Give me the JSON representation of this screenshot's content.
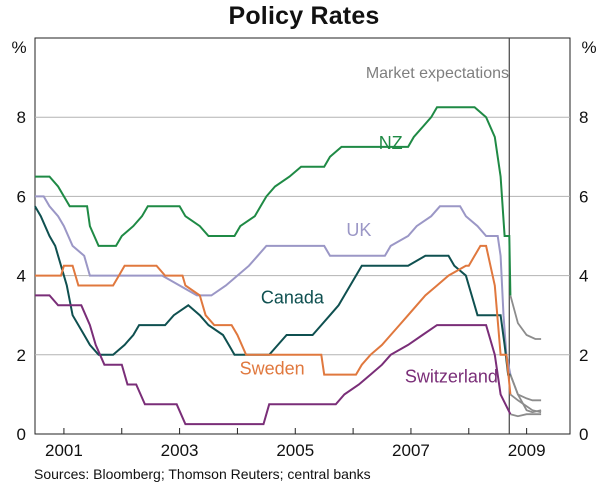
{
  "title": "Policy Rates",
  "source": "Sources: Bloomberg; Thomson Reuters; central banks",
  "chart_data": {
    "type": "line",
    "title": "Policy Rates",
    "ylabel": "%",
    "ylabel_right": "%",
    "xlim": [
      2000.5,
      2009.75
    ],
    "ylim": [
      0,
      10
    ],
    "y_ticks": [
      0,
      2,
      4,
      6,
      8
    ],
    "x_ticks": [
      {
        "label": "2001",
        "value": 2001.0
      },
      {
        "label": "2003",
        "value": 2003.0
      },
      {
        "label": "2005",
        "value": 2005.0
      },
      {
        "label": "2007",
        "value": 2007.0
      },
      {
        "label": "2009",
        "value": 2009.0
      }
    ],
    "gridlines": true,
    "divider_x": 2008.7,
    "annotation": "Market expectations",
    "series": [
      {
        "name": "NZ",
        "color": "#1f8a45",
        "label_at": [
          2006.65,
          7.2
        ],
        "points": [
          [
            2000.5,
            6.5
          ],
          [
            2000.75,
            6.5
          ],
          [
            2000.9,
            6.25
          ],
          [
            2001.0,
            6.0
          ],
          [
            2001.1,
            5.75
          ],
          [
            2001.4,
            5.75
          ],
          [
            2001.45,
            5.25
          ],
          [
            2001.6,
            4.75
          ],
          [
            2001.9,
            4.75
          ],
          [
            2002.0,
            5.0
          ],
          [
            2002.2,
            5.25
          ],
          [
            2002.35,
            5.5
          ],
          [
            2002.45,
            5.75
          ],
          [
            2003.0,
            5.75
          ],
          [
            2003.1,
            5.5
          ],
          [
            2003.35,
            5.25
          ],
          [
            2003.5,
            5.0
          ],
          [
            2003.95,
            5.0
          ],
          [
            2004.05,
            5.25
          ],
          [
            2004.3,
            5.5
          ],
          [
            2004.4,
            5.75
          ],
          [
            2004.5,
            6.0
          ],
          [
            2004.65,
            6.25
          ],
          [
            2004.9,
            6.5
          ],
          [
            2005.1,
            6.75
          ],
          [
            2005.5,
            6.75
          ],
          [
            2005.6,
            7.0
          ],
          [
            2005.8,
            7.25
          ],
          [
            2006.95,
            7.25
          ],
          [
            2007.05,
            7.5
          ],
          [
            2007.2,
            7.75
          ],
          [
            2007.35,
            8.0
          ],
          [
            2007.45,
            8.25
          ],
          [
            2008.1,
            8.25
          ],
          [
            2008.3,
            8.0
          ],
          [
            2008.45,
            7.5
          ],
          [
            2008.55,
            6.5
          ],
          [
            2008.62,
            5.0
          ],
          [
            2008.7,
            5.0
          ],
          [
            2008.72,
            3.5
          ]
        ]
      },
      {
        "name": "UK",
        "color": "#9b97c6",
        "label_at": [
          2006.1,
          5.0
        ],
        "points": [
          [
            2000.5,
            6.0
          ],
          [
            2000.65,
            6.0
          ],
          [
            2000.75,
            5.75
          ],
          [
            2000.9,
            5.5
          ],
          [
            2001.0,
            5.25
          ],
          [
            2001.15,
            4.75
          ],
          [
            2001.35,
            4.5
          ],
          [
            2001.45,
            4.0
          ],
          [
            2002.2,
            4.0
          ],
          [
            2002.7,
            4.0
          ],
          [
            2003.0,
            3.75
          ],
          [
            2003.3,
            3.5
          ],
          [
            2003.55,
            3.5
          ],
          [
            2003.8,
            3.75
          ],
          [
            2004.0,
            4.0
          ],
          [
            2004.2,
            4.25
          ],
          [
            2004.35,
            4.5
          ],
          [
            2004.5,
            4.75
          ],
          [
            2005.5,
            4.75
          ],
          [
            2005.6,
            4.5
          ],
          [
            2006.55,
            4.5
          ],
          [
            2006.65,
            4.75
          ],
          [
            2006.95,
            5.0
          ],
          [
            2007.1,
            5.25
          ],
          [
            2007.35,
            5.5
          ],
          [
            2007.5,
            5.75
          ],
          [
            2007.85,
            5.75
          ],
          [
            2007.95,
            5.5
          ],
          [
            2008.15,
            5.25
          ],
          [
            2008.3,
            5.0
          ],
          [
            2008.5,
            5.0
          ],
          [
            2008.55,
            4.5
          ],
          [
            2008.6,
            3.0
          ],
          [
            2008.65,
            2.0
          ],
          [
            2008.72,
            1.5
          ]
        ]
      },
      {
        "name": "Canada",
        "color": "#0f5050",
        "label_at": [
          2004.95,
          3.3
        ],
        "points": [
          [
            2000.5,
            5.75
          ],
          [
            2000.6,
            5.5
          ],
          [
            2000.75,
            5.0
          ],
          [
            2000.85,
            4.75
          ],
          [
            2000.95,
            4.25
          ],
          [
            2001.05,
            3.75
          ],
          [
            2001.15,
            3.0
          ],
          [
            2001.35,
            2.5
          ],
          [
            2001.45,
            2.25
          ],
          [
            2001.6,
            2.0
          ],
          [
            2001.85,
            2.0
          ],
          [
            2002.05,
            2.25
          ],
          [
            2002.2,
            2.5
          ],
          [
            2002.3,
            2.75
          ],
          [
            2002.75,
            2.75
          ],
          [
            2002.9,
            3.0
          ],
          [
            2003.15,
            3.25
          ],
          [
            2003.35,
            3.0
          ],
          [
            2003.5,
            2.75
          ],
          [
            2003.75,
            2.5
          ],
          [
            2003.85,
            2.25
          ],
          [
            2003.95,
            2.0
          ],
          [
            2004.55,
            2.0
          ],
          [
            2004.7,
            2.25
          ],
          [
            2004.85,
            2.5
          ],
          [
            2005.3,
            2.5
          ],
          [
            2005.45,
            2.75
          ],
          [
            2005.6,
            3.0
          ],
          [
            2005.75,
            3.25
          ],
          [
            2005.85,
            3.5
          ],
          [
            2005.95,
            3.75
          ],
          [
            2006.05,
            4.0
          ],
          [
            2006.15,
            4.25
          ],
          [
            2006.95,
            4.25
          ],
          [
            2007.25,
            4.5
          ],
          [
            2007.65,
            4.5
          ],
          [
            2007.75,
            4.25
          ],
          [
            2007.95,
            4.0
          ],
          [
            2008.05,
            3.5
          ],
          [
            2008.15,
            3.0
          ],
          [
            2008.55,
            3.0
          ],
          [
            2008.62,
            2.25
          ],
          [
            2008.68,
            1.5
          ],
          [
            2008.72,
            1.5
          ]
        ]
      },
      {
        "name": "Sweden",
        "color": "#e0783e",
        "label_at": [
          2004.6,
          1.5
        ],
        "points": [
          [
            2000.5,
            4.0
          ],
          [
            2000.95,
            4.0
          ],
          [
            2001.0,
            4.25
          ],
          [
            2001.15,
            4.25
          ],
          [
            2001.25,
            3.75
          ],
          [
            2001.85,
            3.75
          ],
          [
            2001.95,
            4.0
          ],
          [
            2002.05,
            4.25
          ],
          [
            2002.6,
            4.25
          ],
          [
            2002.75,
            4.0
          ],
          [
            2003.05,
            4.0
          ],
          [
            2003.1,
            3.75
          ],
          [
            2003.35,
            3.5
          ],
          [
            2003.45,
            3.0
          ],
          [
            2003.6,
            2.75
          ],
          [
            2003.9,
            2.75
          ],
          [
            2004.0,
            2.5
          ],
          [
            2004.15,
            2.0
          ],
          [
            2005.45,
            2.0
          ],
          [
            2005.5,
            1.5
          ],
          [
            2006.05,
            1.5
          ],
          [
            2006.15,
            1.75
          ],
          [
            2006.3,
            2.0
          ],
          [
            2006.5,
            2.25
          ],
          [
            2006.65,
            2.5
          ],
          [
            2006.8,
            2.75
          ],
          [
            2006.95,
            3.0
          ],
          [
            2007.1,
            3.25
          ],
          [
            2007.25,
            3.5
          ],
          [
            2007.45,
            3.75
          ],
          [
            2007.65,
            4.0
          ],
          [
            2007.95,
            4.25
          ],
          [
            2008.0,
            4.25
          ],
          [
            2008.1,
            4.5
          ],
          [
            2008.2,
            4.75
          ],
          [
            2008.3,
            4.75
          ],
          [
            2008.45,
            3.75
          ],
          [
            2008.55,
            2.0
          ],
          [
            2008.65,
            2.0
          ],
          [
            2008.72,
            1.0
          ]
        ]
      },
      {
        "name": "Switzerland",
        "color": "#7a2e78",
        "label_at": [
          2007.7,
          1.3
        ],
        "points": [
          [
            2000.5,
            3.5
          ],
          [
            2000.75,
            3.5
          ],
          [
            2000.9,
            3.25
          ],
          [
            2001.3,
            3.25
          ],
          [
            2001.45,
            2.75
          ],
          [
            2001.55,
            2.25
          ],
          [
            2001.7,
            1.75
          ],
          [
            2002.0,
            1.75
          ],
          [
            2002.1,
            1.25
          ],
          [
            2002.25,
            1.25
          ],
          [
            2002.4,
            0.75
          ],
          [
            2002.95,
            0.75
          ],
          [
            2003.1,
            0.25
          ],
          [
            2004.45,
            0.25
          ],
          [
            2004.55,
            0.75
          ],
          [
            2005.7,
            0.75
          ],
          [
            2005.85,
            1.0
          ],
          [
            2006.1,
            1.25
          ],
          [
            2006.3,
            1.5
          ],
          [
            2006.5,
            1.75
          ],
          [
            2006.65,
            2.0
          ],
          [
            2006.95,
            2.25
          ],
          [
            2007.2,
            2.5
          ],
          [
            2007.45,
            2.75
          ],
          [
            2008.3,
            2.75
          ],
          [
            2008.45,
            2.0
          ],
          [
            2008.55,
            1.0
          ],
          [
            2008.72,
            0.5
          ]
        ]
      }
    ],
    "expectations": [
      {
        "name": "NZ expectations",
        "points": [
          [
            2008.72,
            3.5
          ],
          [
            2008.85,
            2.8
          ],
          [
            2009.0,
            2.5
          ],
          [
            2009.15,
            2.4
          ],
          [
            2009.25,
            2.4
          ]
        ]
      },
      {
        "name": "Canada expectations",
        "points": [
          [
            2008.72,
            1.5
          ],
          [
            2008.85,
            1.0
          ],
          [
            2009.0,
            0.9
          ],
          [
            2009.1,
            0.85
          ],
          [
            2009.25,
            0.85
          ]
        ]
      },
      {
        "name": "Sweden expectations",
        "points": [
          [
            2008.72,
            1.0
          ],
          [
            2008.85,
            0.85
          ],
          [
            2009.0,
            0.7
          ],
          [
            2009.1,
            0.6
          ],
          [
            2009.25,
            0.55
          ]
        ]
      },
      {
        "name": "UK expectations",
        "points": [
          [
            2008.72,
            1.5
          ],
          [
            2008.85,
            1.0
          ],
          [
            2009.0,
            0.6
          ],
          [
            2009.1,
            0.55
          ],
          [
            2009.25,
            0.6
          ]
        ]
      },
      {
        "name": "Switzerland expectations",
        "points": [
          [
            2008.72,
            0.5
          ],
          [
            2008.85,
            0.45
          ],
          [
            2009.0,
            0.5
          ],
          [
            2009.1,
            0.5
          ],
          [
            2009.25,
            0.5
          ]
        ]
      }
    ]
  }
}
